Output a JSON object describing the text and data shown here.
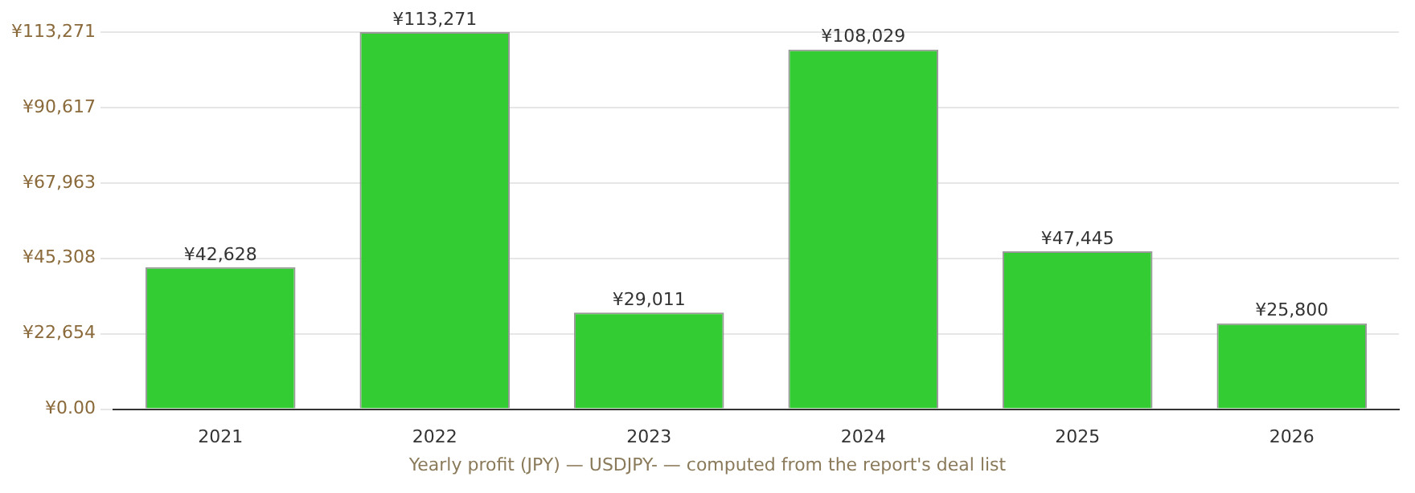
{
  "chart_data": {
    "type": "bar",
    "categories": [
      "2021",
      "2022",
      "2023",
      "2024",
      "2025",
      "2026"
    ],
    "values": [
      42628,
      113271,
      29011,
      108029,
      47445,
      25800
    ],
    "value_labels": [
      "¥42,628",
      "¥113,271",
      "¥29,011",
      "¥108,029",
      "¥47,445",
      "¥25,800"
    ],
    "color": "#33cc33",
    "ylim": [
      0,
      113271
    ],
    "yticks": [
      {
        "value": 0,
        "label": "¥0.00"
      },
      {
        "value": 22654,
        "label": "¥22,654"
      },
      {
        "value": 45308,
        "label": "¥45,308"
      },
      {
        "value": 67963,
        "label": "¥67,963"
      },
      {
        "value": 90617,
        "label": "¥90,617"
      },
      {
        "value": 113271,
        "label": "¥113,271"
      }
    ],
    "grid": "y",
    "legend": false,
    "annotations": [
      "Yearly profit (JPY) — USDJPY- — computed from the report's deal list"
    ]
  }
}
